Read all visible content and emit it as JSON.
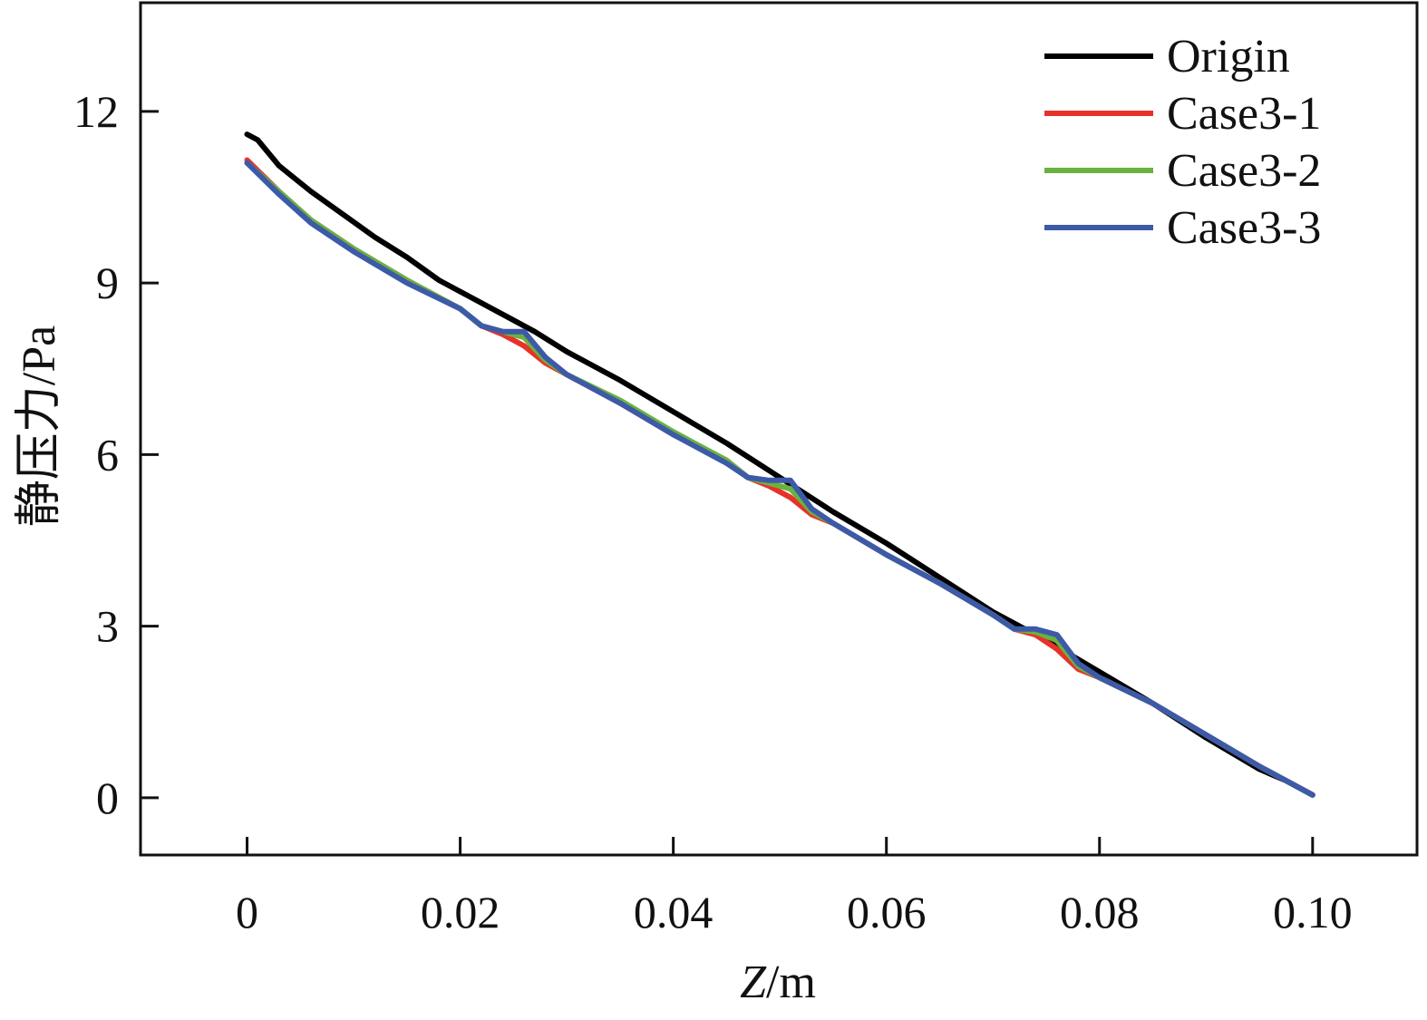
{
  "chart_data": {
    "type": "line",
    "title": "",
    "xlabel": "Z/m",
    "xlabel_italic_part": "Z",
    "xlabel_rest": "/m",
    "ylabel": "静压力/Pa",
    "xlim": [
      -0.01,
      0.1098
    ],
    "ylim": [
      -1,
      13.9
    ],
    "x_ticks": [
      0,
      0.02,
      0.04,
      0.06,
      0.08,
      0.1
    ],
    "x_tick_labels": [
      "0",
      "0.02",
      "0.04",
      "0.06",
      "0.08",
      "0.10"
    ],
    "y_ticks": [
      0,
      3,
      6,
      9,
      12
    ],
    "y_tick_labels": [
      "0",
      "3",
      "6",
      "9",
      "12"
    ],
    "grid": false,
    "legend_position": "top-right",
    "series": [
      {
        "name": "Origin",
        "color": "#000000",
        "points": [
          [
            0,
            11.6
          ],
          [
            0.001,
            11.5
          ],
          [
            0.003,
            11.05
          ],
          [
            0.006,
            10.6
          ],
          [
            0.009,
            10.2
          ],
          [
            0.012,
            9.8
          ],
          [
            0.015,
            9.45
          ],
          [
            0.018,
            9.05
          ],
          [
            0.021,
            8.75
          ],
          [
            0.024,
            8.45
          ],
          [
            0.027,
            8.15
          ],
          [
            0.03,
            7.8
          ],
          [
            0.035,
            7.3
          ],
          [
            0.04,
            6.75
          ],
          [
            0.045,
            6.2
          ],
          [
            0.05,
            5.6
          ],
          [
            0.055,
            5.0
          ],
          [
            0.06,
            4.45
          ],
          [
            0.065,
            3.85
          ],
          [
            0.07,
            3.25
          ],
          [
            0.075,
            2.75
          ],
          [
            0.08,
            2.2
          ],
          [
            0.085,
            1.65
          ],
          [
            0.09,
            1.05
          ],
          [
            0.095,
            0.5
          ],
          [
            0.0975,
            0.3
          ],
          [
            0.1,
            0.05
          ]
        ]
      },
      {
        "name": "Case3-1",
        "color": "#e8312a",
        "points": [
          [
            0,
            11.15
          ],
          [
            0.003,
            10.6
          ],
          [
            0.006,
            10.1
          ],
          [
            0.01,
            9.6
          ],
          [
            0.015,
            9.05
          ],
          [
            0.02,
            8.55
          ],
          [
            0.022,
            8.25
          ],
          [
            0.024,
            8.1
          ],
          [
            0.026,
            7.9
          ],
          [
            0.028,
            7.6
          ],
          [
            0.03,
            7.4
          ],
          [
            0.035,
            6.9
          ],
          [
            0.04,
            6.35
          ],
          [
            0.045,
            5.9
          ],
          [
            0.047,
            5.6
          ],
          [
            0.049,
            5.45
          ],
          [
            0.051,
            5.25
          ],
          [
            0.053,
            4.95
          ],
          [
            0.055,
            4.8
          ],
          [
            0.06,
            4.25
          ],
          [
            0.065,
            3.75
          ],
          [
            0.07,
            3.2
          ],
          [
            0.072,
            2.95
          ],
          [
            0.074,
            2.85
          ],
          [
            0.076,
            2.6
          ],
          [
            0.078,
            2.25
          ],
          [
            0.08,
            2.1
          ],
          [
            0.085,
            1.65
          ],
          [
            0.09,
            1.1
          ],
          [
            0.095,
            0.55
          ],
          [
            0.1,
            0.05
          ]
        ]
      },
      {
        "name": "Case3-2",
        "color": "#6ab23e",
        "points": [
          [
            0,
            11.1
          ],
          [
            0.003,
            10.6
          ],
          [
            0.006,
            10.1
          ],
          [
            0.01,
            9.6
          ],
          [
            0.015,
            9.05
          ],
          [
            0.02,
            8.55
          ],
          [
            0.022,
            8.25
          ],
          [
            0.024,
            8.15
          ],
          [
            0.026,
            8.05
          ],
          [
            0.028,
            7.65
          ],
          [
            0.03,
            7.4
          ],
          [
            0.035,
            6.95
          ],
          [
            0.04,
            6.4
          ],
          [
            0.045,
            5.9
          ],
          [
            0.047,
            5.6
          ],
          [
            0.049,
            5.5
          ],
          [
            0.051,
            5.4
          ],
          [
            0.053,
            5.0
          ],
          [
            0.055,
            4.8
          ],
          [
            0.06,
            4.25
          ],
          [
            0.065,
            3.75
          ],
          [
            0.07,
            3.2
          ],
          [
            0.072,
            2.95
          ],
          [
            0.074,
            2.9
          ],
          [
            0.076,
            2.75
          ],
          [
            0.078,
            2.3
          ],
          [
            0.08,
            2.1
          ],
          [
            0.085,
            1.65
          ],
          [
            0.09,
            1.1
          ],
          [
            0.095,
            0.55
          ],
          [
            0.1,
            0.05
          ]
        ]
      },
      {
        "name": "Case3-3",
        "color": "#3d5aa8",
        "points": [
          [
            0,
            11.1
          ],
          [
            0.003,
            10.55
          ],
          [
            0.006,
            10.05
          ],
          [
            0.01,
            9.55
          ],
          [
            0.015,
            9.0
          ],
          [
            0.02,
            8.55
          ],
          [
            0.022,
            8.25
          ],
          [
            0.024,
            8.15
          ],
          [
            0.026,
            8.15
          ],
          [
            0.028,
            7.7
          ],
          [
            0.03,
            7.4
          ],
          [
            0.035,
            6.9
          ],
          [
            0.04,
            6.35
          ],
          [
            0.045,
            5.85
          ],
          [
            0.047,
            5.6
          ],
          [
            0.049,
            5.55
          ],
          [
            0.051,
            5.55
          ],
          [
            0.053,
            5.05
          ],
          [
            0.055,
            4.8
          ],
          [
            0.06,
            4.25
          ],
          [
            0.065,
            3.75
          ],
          [
            0.07,
            3.2
          ],
          [
            0.072,
            2.95
          ],
          [
            0.074,
            2.95
          ],
          [
            0.076,
            2.85
          ],
          [
            0.078,
            2.35
          ],
          [
            0.08,
            2.1
          ],
          [
            0.085,
            1.65
          ],
          [
            0.09,
            1.1
          ],
          [
            0.095,
            0.55
          ],
          [
            0.1,
            0.05
          ]
        ]
      }
    ]
  }
}
